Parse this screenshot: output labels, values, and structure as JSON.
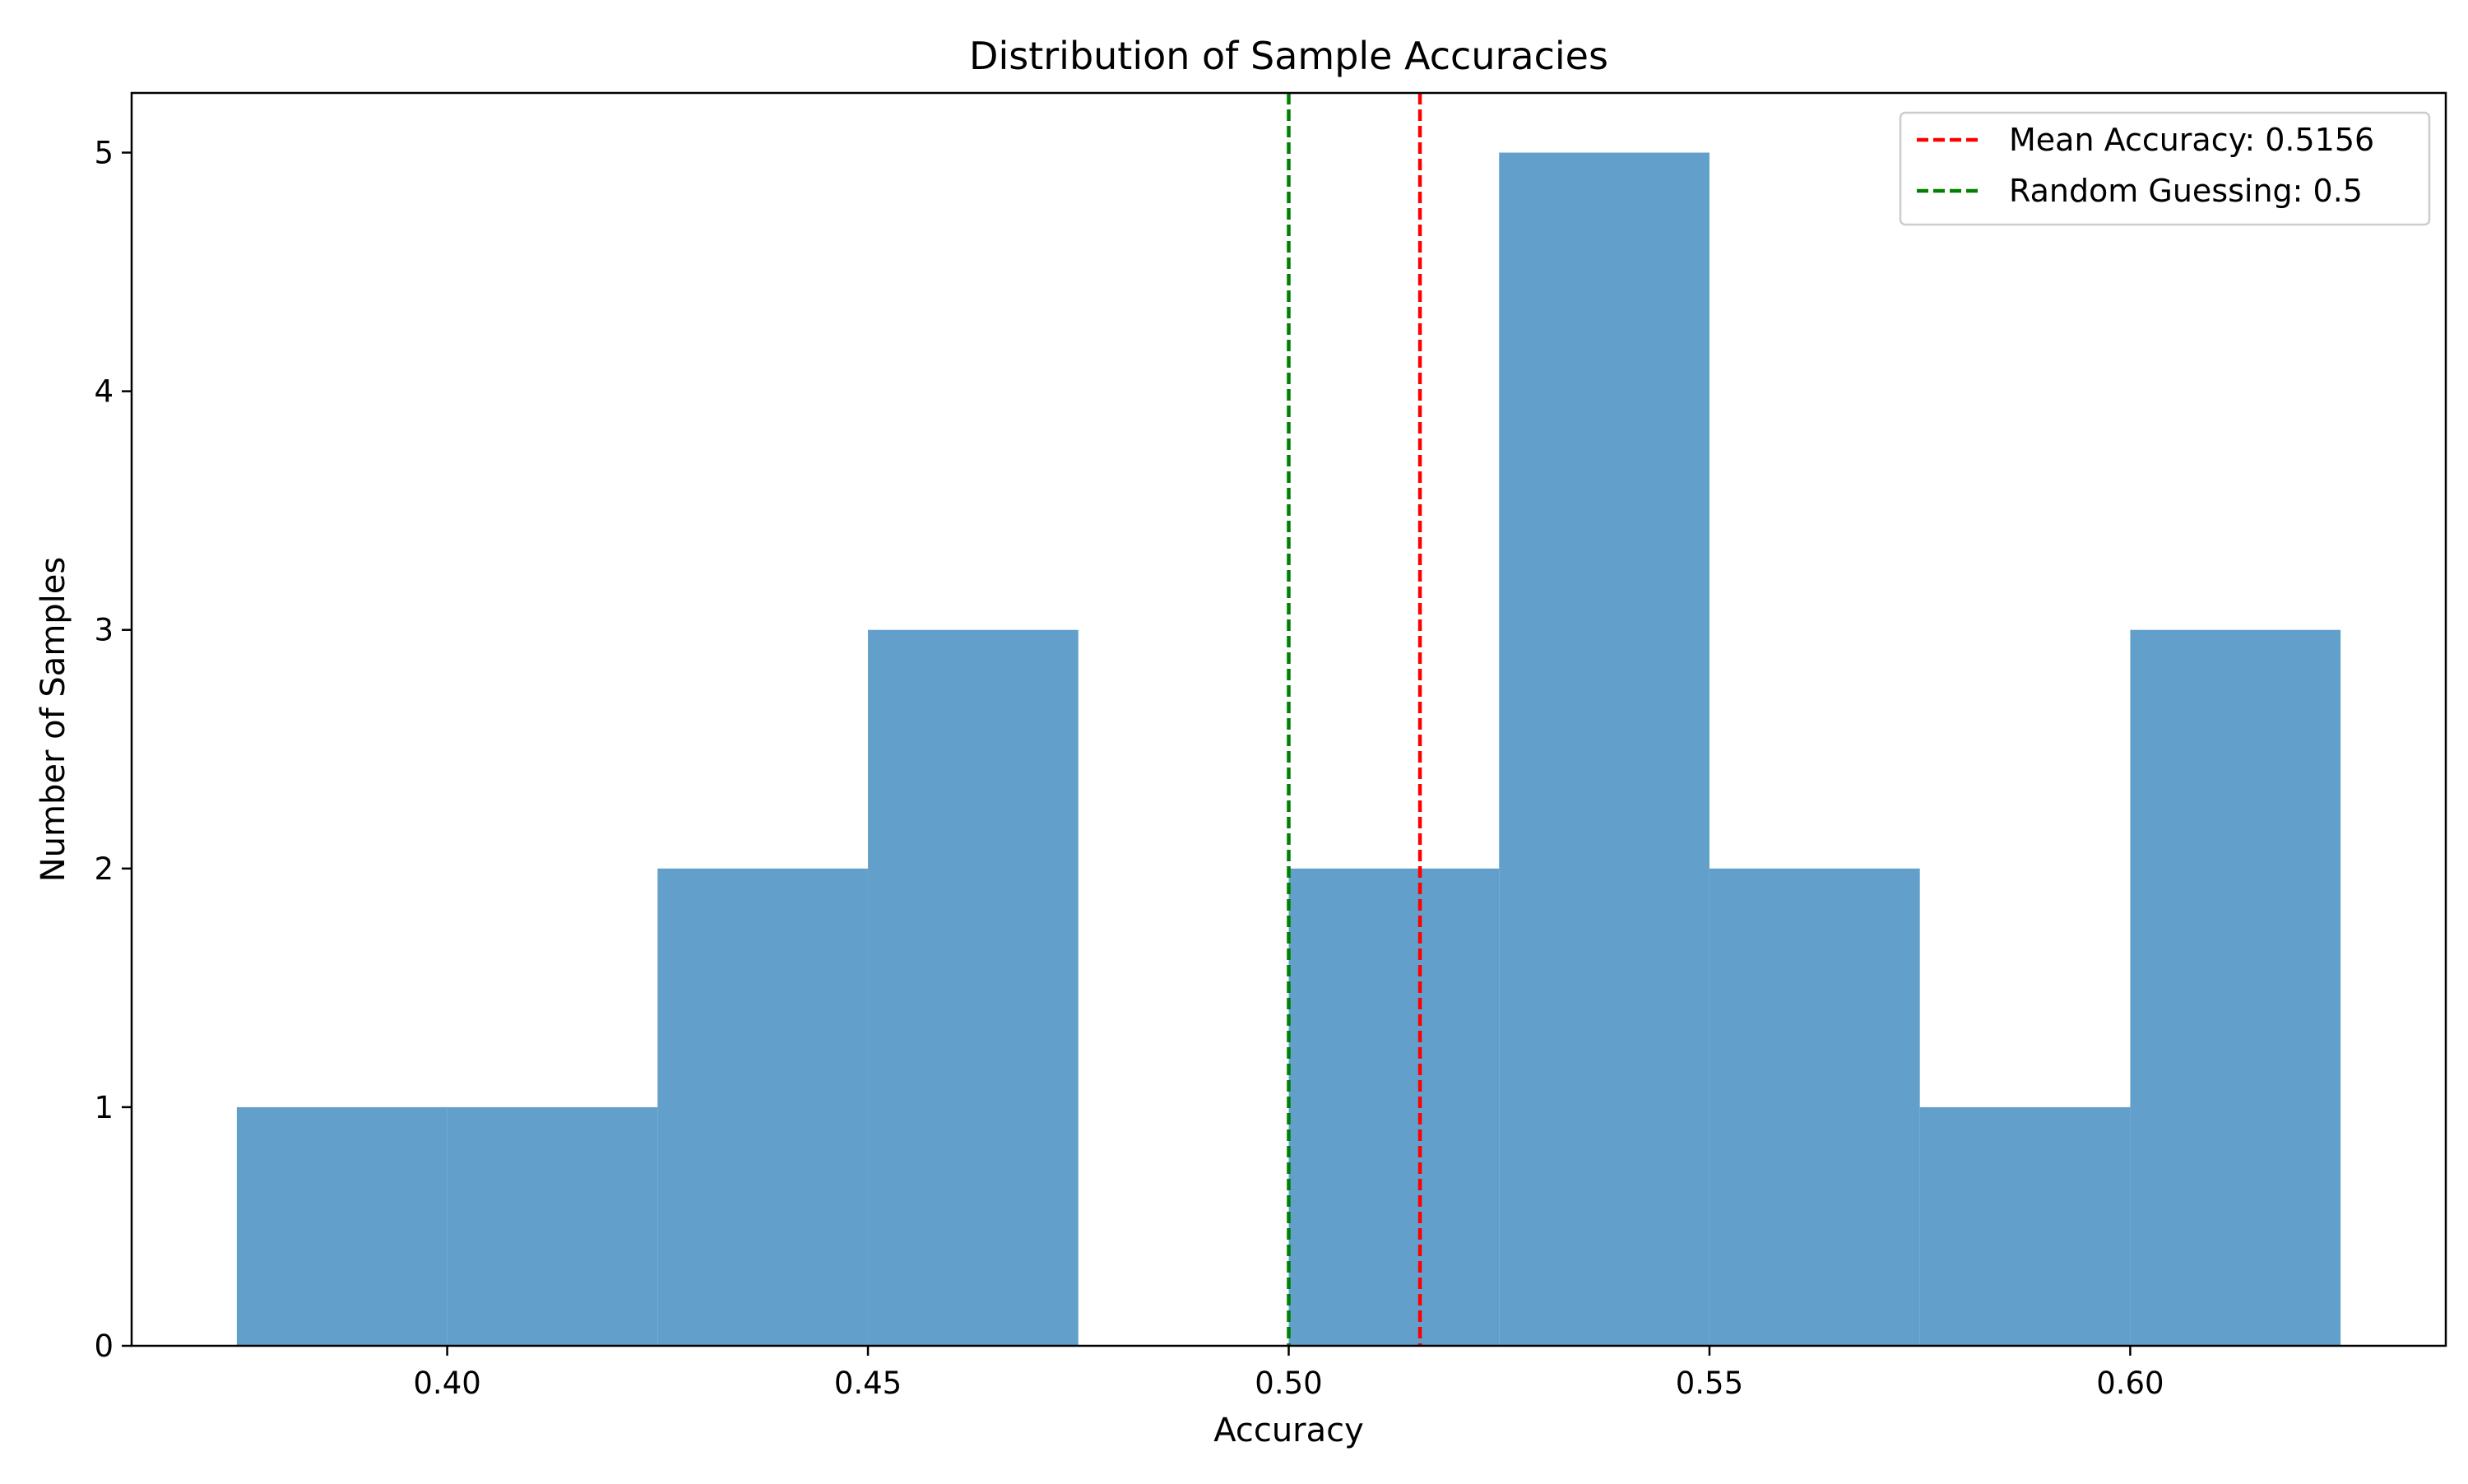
{
  "chart_data": {
    "type": "bar",
    "subtype": "histogram",
    "title": "Distribution of Sample Accuracies",
    "xlabel": "Accuracy",
    "ylabel": "Number of Samples",
    "xlim": [
      0.3625,
      0.6375
    ],
    "ylim": [
      0,
      5.25
    ],
    "x_ticks": [
      0.4,
      0.45,
      0.5,
      0.55,
      0.6
    ],
    "x_tick_labels": [
      "0.40",
      "0.45",
      "0.50",
      "0.55",
      "0.60"
    ],
    "y_ticks": [
      0,
      1,
      2,
      3,
      4,
      5
    ],
    "y_tick_labels": [
      "0",
      "1",
      "2",
      "3",
      "4",
      "5"
    ],
    "bin_edges": [
      0.375,
      0.4,
      0.425,
      0.45,
      0.475,
      0.5,
      0.525,
      0.55,
      0.575,
      0.6,
      0.625
    ],
    "counts": [
      1,
      1,
      2,
      3,
      0,
      2,
      5,
      2,
      1,
      3
    ],
    "bar_color": "#62a0cb",
    "grid": false,
    "reference_lines": [
      {
        "label": "Mean Accuracy: 0.5156",
        "x": 0.5156,
        "color": "#ff0000",
        "style": "dashed"
      },
      {
        "label": "Random Guessing: 0.5",
        "x": 0.5,
        "color": "#008000",
        "style": "dashed"
      }
    ],
    "legend_position": "top-right"
  }
}
